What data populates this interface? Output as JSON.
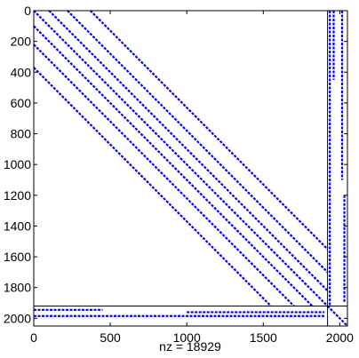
{
  "chart_data": {
    "type": "spy",
    "xlabel": "nz = 18929",
    "color": "#0000ff",
    "xlim": [
      0,
      2050
    ],
    "ylim": [
      0,
      2050
    ],
    "xticks": [
      0,
      500,
      1000,
      1500,
      2000
    ],
    "yticks": [
      0,
      200,
      400,
      600,
      800,
      1000,
      1200,
      1400,
      1600,
      1800,
      2000
    ],
    "hline": 1920,
    "vline": 1920,
    "segments": [
      {
        "x": [
          0,
          1920
        ],
        "y": [
          0,
          1920
        ]
      },
      {
        "x": [
          0,
          1820
        ],
        "y": [
          100,
          1920
        ]
      },
      {
        "x": [
          100,
          1920
        ],
        "y": [
          0,
          1820
        ]
      },
      {
        "x": [
          0,
          1700
        ],
        "y": [
          220,
          1920
        ]
      },
      {
        "x": [
          220,
          1920
        ],
        "y": [
          0,
          1700
        ]
      },
      {
        "x": [
          0,
          1550
        ],
        "y": [
          370,
          1920
        ]
      },
      {
        "x": [
          370,
          1920
        ],
        "y": [
          0,
          1550
        ]
      },
      {
        "x": [
          1935,
          1935
        ],
        "y": [
          0,
          1920
        ]
      },
      {
        "x": [
          1960,
          1960
        ],
        "y": [
          0,
          450
        ]
      },
      {
        "x": [
          2015,
          2015
        ],
        "y": [
          0,
          1100
        ]
      },
      {
        "x": [
          2030,
          2030
        ],
        "y": [
          1200,
          1900
        ]
      },
      {
        "x": [
          0,
          1900
        ],
        "y": [
          1985,
          1985
        ]
      },
      {
        "x": [
          0,
          450
        ],
        "y": [
          1945,
          1945
        ]
      },
      {
        "x": [
          1000,
          1900
        ],
        "y": [
          1960,
          1960
        ]
      },
      {
        "x": [
          1920,
          2050
        ],
        "y": [
          1920,
          2050
        ]
      }
    ]
  }
}
